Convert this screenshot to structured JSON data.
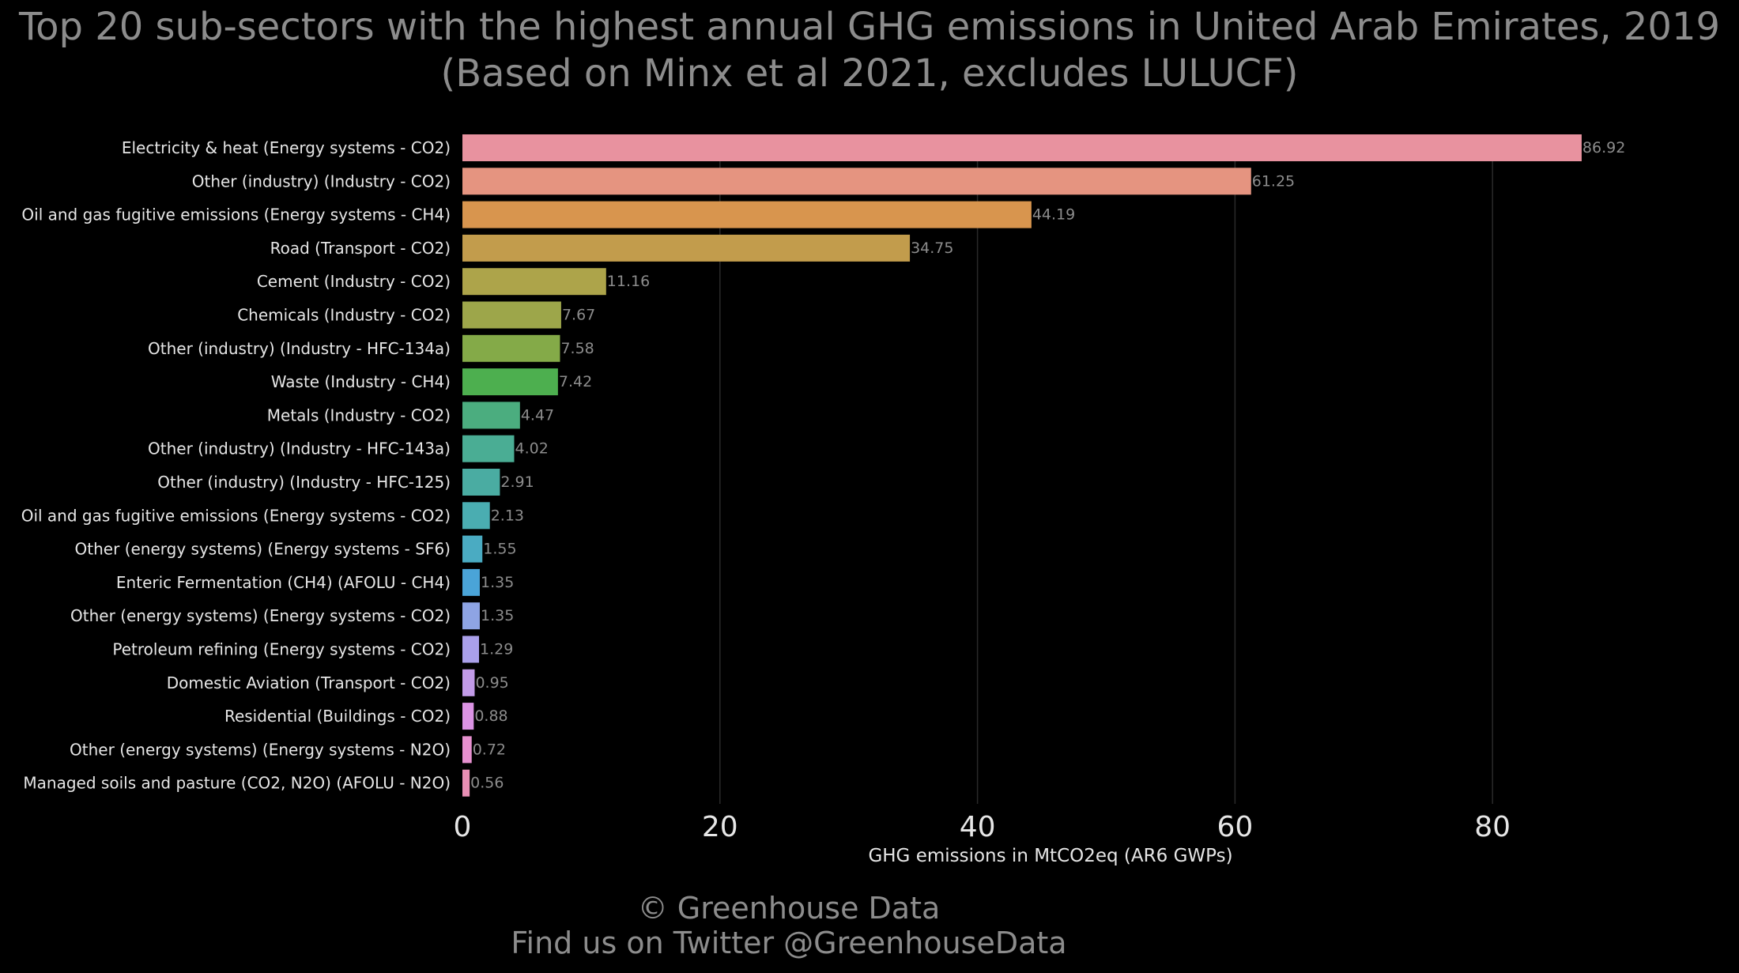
{
  "chart_data": {
    "type": "bar",
    "orientation": "horizontal",
    "title": [
      "Top 20 sub-sectors with the highest annual GHG emissions in United Arab Emirates, 2019",
      "(Based on Minx et al 2021, excludes LULUCF)"
    ],
    "xlabel": "GHG emissions in MtCO2eq (AR6 GWPs)",
    "ylabel": "",
    "xlim": [
      0,
      95
    ],
    "xticks": [
      0,
      20,
      40,
      60,
      80
    ],
    "grid": "vertical",
    "categories": [
      "Electricity & heat (Energy systems - CO2)",
      "Other (industry) (Industry - CO2)",
      "Oil and gas fugitive emissions (Energy systems - CH4)",
      "Road (Transport - CO2)",
      "Cement (Industry - CO2)",
      "Chemicals (Industry - CO2)",
      "Other (industry) (Industry - HFC-134a)",
      "Waste (Industry - CH4)",
      "Metals (Industry - CO2)",
      "Other (industry) (Industry - HFC-143a)",
      "Other (industry) (Industry - HFC-125)",
      "Oil and gas fugitive emissions (Energy systems - CO2)",
      "Other (energy systems) (Energy systems - SF6)",
      "Enteric Fermentation (CH4) (AFOLU - CH4)",
      "Other (energy systems) (Energy systems - CO2)",
      "Petroleum refining (Energy systems - CO2)",
      "Domestic Aviation (Transport - CO2)",
      "Residential (Buildings - CO2)",
      "Other (energy systems) (Energy systems - N2O)",
      "Managed soils and pasture (CO2, N2O) (AFOLU - N2O)"
    ],
    "values": [
      86.92,
      61.25,
      44.19,
      34.75,
      11.16,
      7.67,
      7.58,
      7.42,
      4.47,
      4.02,
      2.91,
      2.13,
      1.55,
      1.35,
      1.35,
      1.29,
      0.95,
      0.88,
      0.72,
      0.56
    ],
    "value_labels": [
      "86.92",
      "61.25",
      "44.19",
      "34.75",
      "11.16",
      "7.67",
      "7.58",
      "7.42",
      "4.47",
      "4.02",
      "2.91",
      "2.13",
      "1.55",
      "1.35",
      "1.35",
      "1.29",
      "0.95",
      "0.88",
      "0.72",
      "0.56"
    ],
    "colors": [
      "#e8929f",
      "#e59480",
      "#d8954e",
      "#c29c4c",
      "#ada44a",
      "#9da64a",
      "#84aa48",
      "#4daf4f",
      "#4bad7f",
      "#4aad94",
      "#4aaca2",
      "#4aadb1",
      "#4aabc2",
      "#4aa4d8",
      "#8ea4e4",
      "#aaa0ea",
      "#c29be8",
      "#db93e4",
      "#e690cf",
      "#e88fb4"
    ]
  },
  "footer": {
    "copyright": "© Greenhouse Data",
    "twitter": "Find us on Twitter @GreenhouseData"
  },
  "colors": {
    "background": "#000000",
    "title_text": "#8c8c8c",
    "label_text": "#e6e6e6",
    "value_text": "#8c8c8c",
    "grid": "#2a2a2a"
  }
}
